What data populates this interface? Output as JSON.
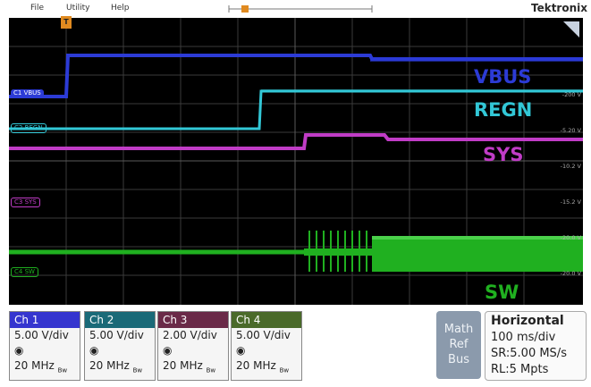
{
  "menu": {
    "file": "File",
    "utility": "Utility",
    "help": "Help"
  },
  "brand": "Tektronix",
  "trigger_marker": "T",
  "channels": {
    "c1": {
      "tag": "C1",
      "name": "VBUS",
      "color": "#2c3bd6"
    },
    "c2": {
      "tag": "C2",
      "name": "REGN",
      "color": "#32c7d6"
    },
    "c3": {
      "tag": "C3",
      "name": "SYS",
      "color": "#c03cc6"
    },
    "c4": {
      "tag": "C4",
      "name": "SW",
      "color": "#20b020"
    }
  },
  "big_labels": {
    "vbus": "VBUS",
    "regn": "REGN",
    "sys": "SYS",
    "sw": "SW"
  },
  "right_labels": {
    "l1": "-200 V",
    "l2": "-5.20 V",
    "l3": "-10.2 V",
    "l4": "-15.2 V",
    "l5": "-20.0 V",
    "l6": "-20.0 V"
  },
  "panels": [
    {
      "head": "Ch 1",
      "color": "#3535cf",
      "scale": "5.00 V/div",
      "bw": "20 MHz"
    },
    {
      "head": "Ch 2",
      "color": "#1a6a78",
      "scale": "5.00 V/div",
      "bw": "20 MHz"
    },
    {
      "head": "Ch 3",
      "color": "#6a2a48",
      "scale": "2.00 V/div",
      "bw": "20 MHz"
    },
    {
      "head": "Ch 4",
      "color": "#4a6a2a",
      "scale": "5.00 V/div",
      "bw": "20 MHz"
    }
  ],
  "bw_suffix": "Bw",
  "mrb": {
    "math": "Math",
    "ref": "Ref",
    "bus": "Bus"
  },
  "horizontal": {
    "title": "Horizontal",
    "timebase": "100 ms/div",
    "sr": "SR:5.00 MS/s",
    "rl": "RL:5 Mpts"
  }
}
